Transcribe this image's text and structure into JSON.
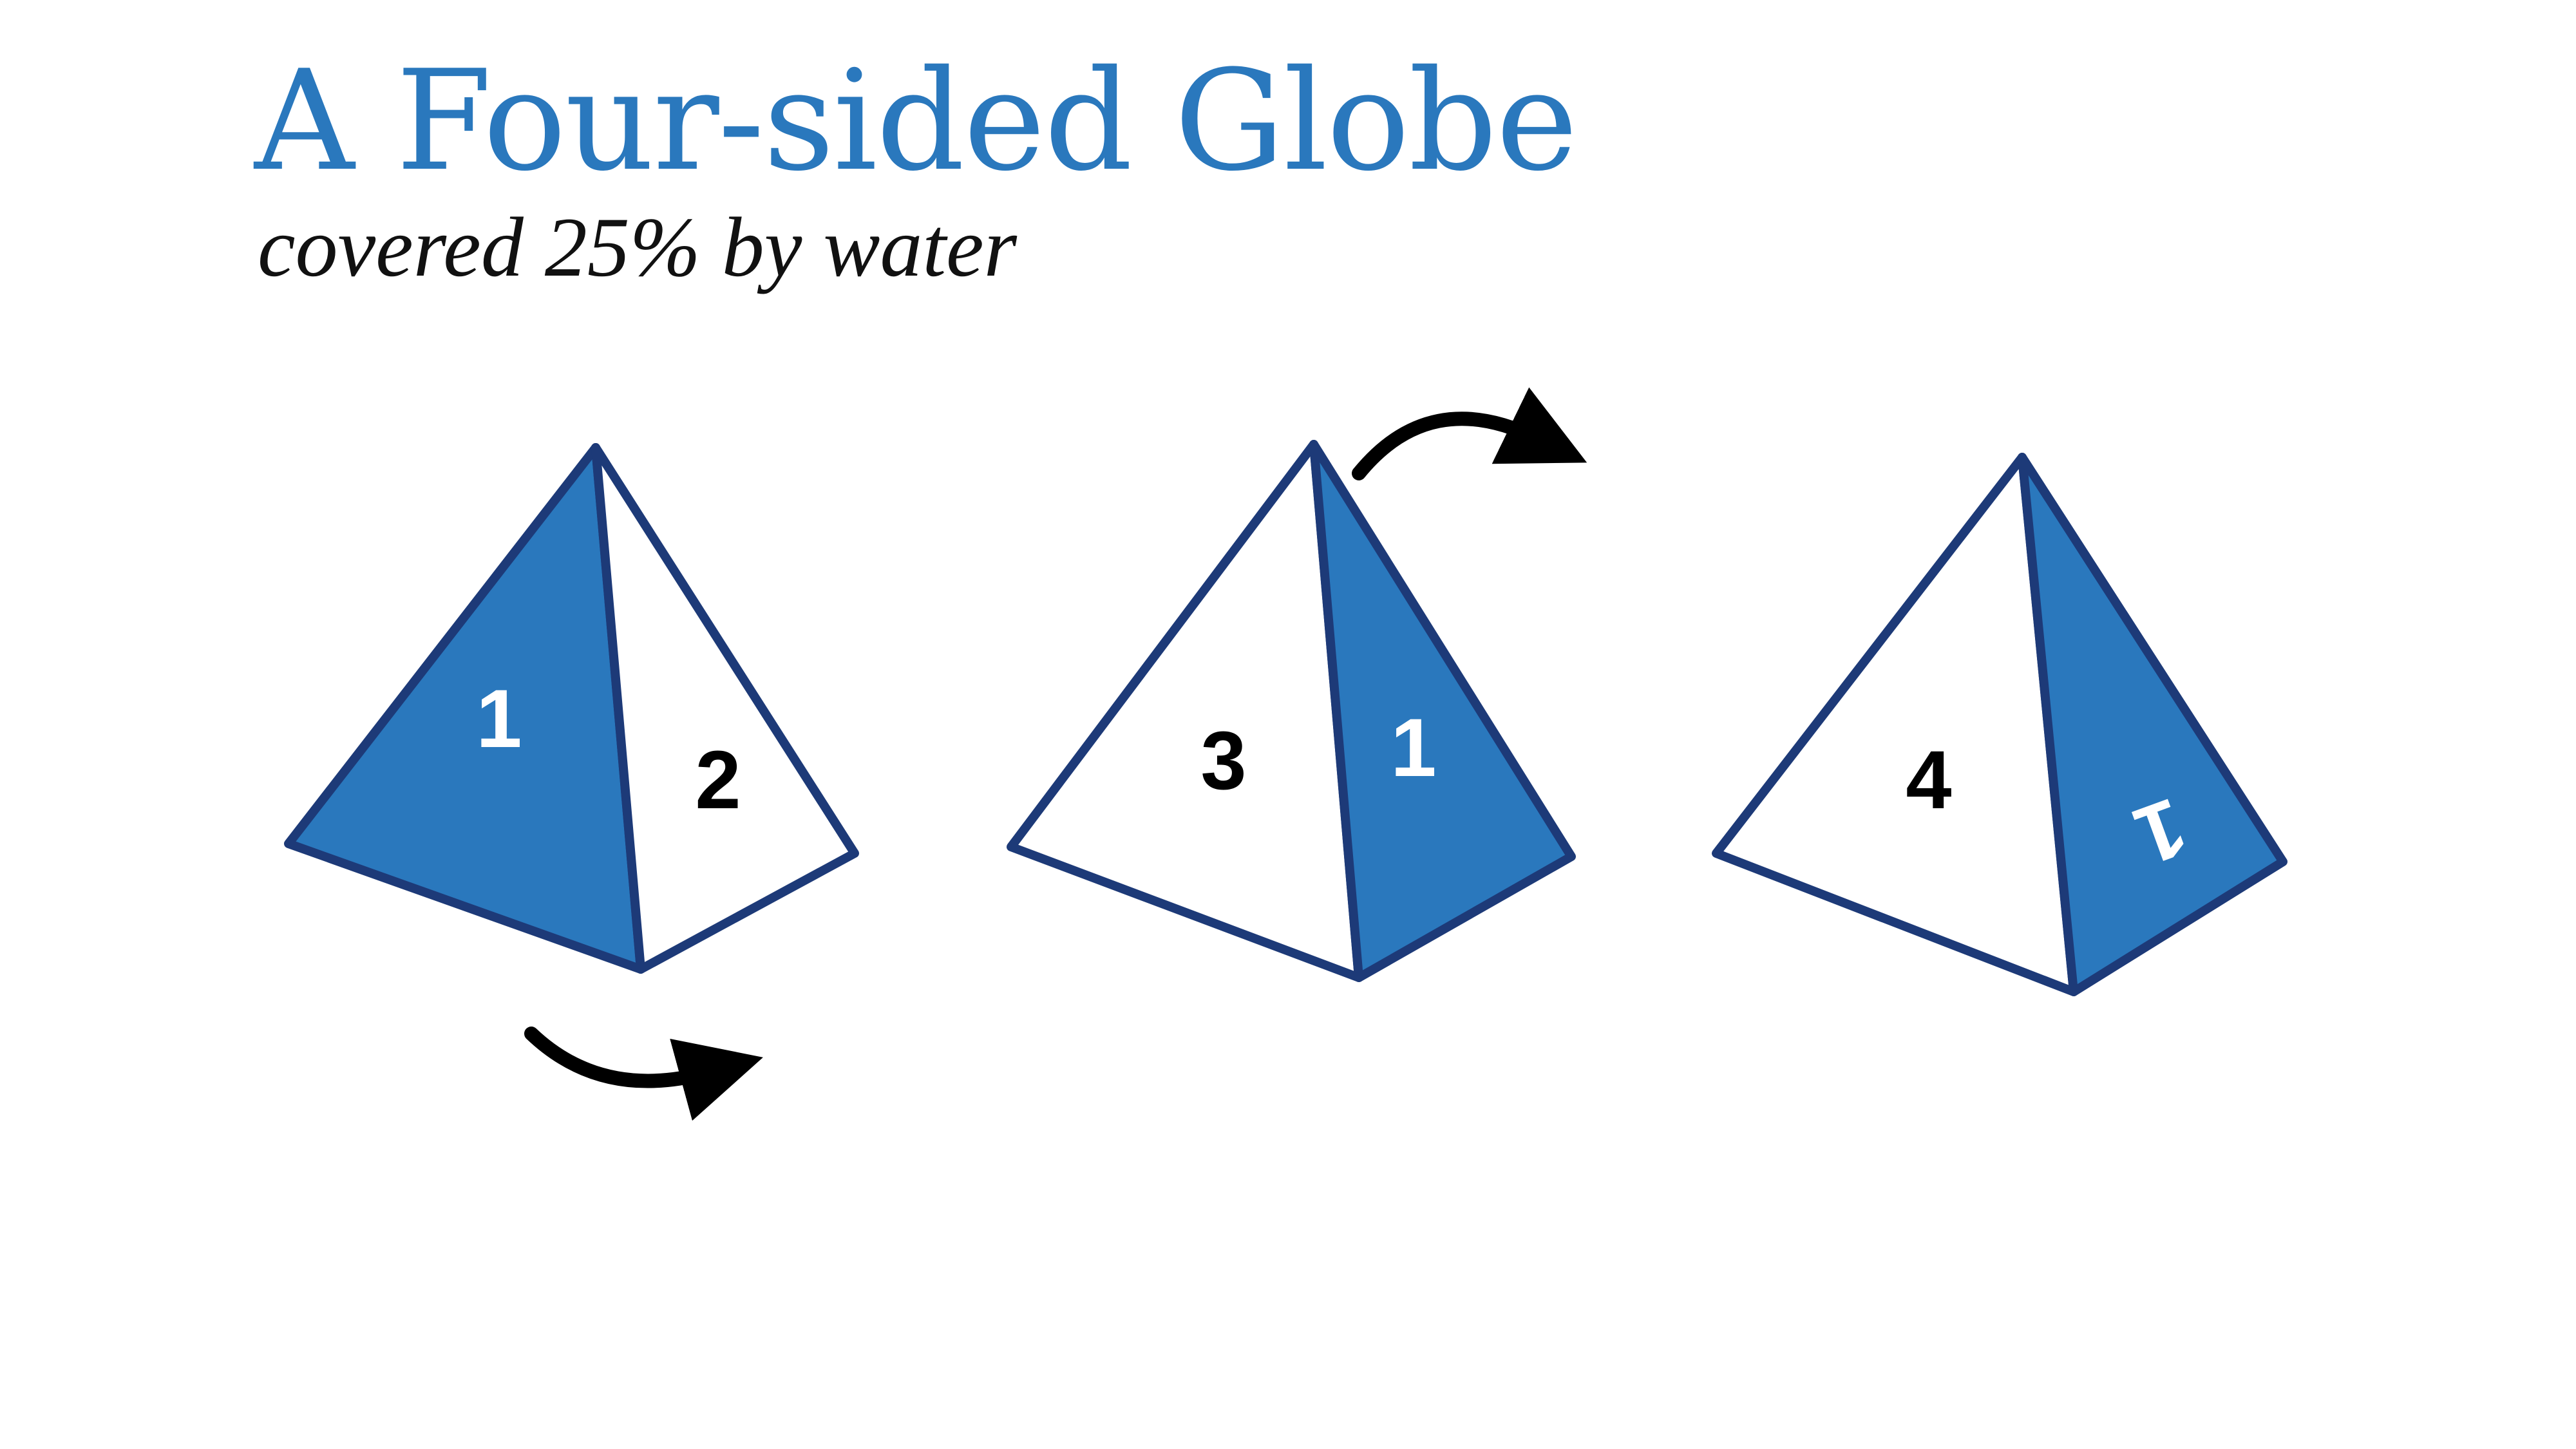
{
  "title": "A Four-sided Globe",
  "subtitle": "covered 25% by water",
  "colors": {
    "water": "#2a78bd",
    "land": "#ffffff",
    "outline": "#1d3a78",
    "title": "#2a78bd",
    "arrow": "#000000"
  },
  "pyramids": [
    {
      "faces": [
        {
          "label": "1",
          "fill": "water"
        },
        {
          "label": "2",
          "fill": "land"
        }
      ]
    },
    {
      "faces": [
        {
          "label": "3",
          "fill": "land"
        },
        {
          "label": "1",
          "fill": "water"
        }
      ]
    },
    {
      "faces": [
        {
          "label": "4",
          "fill": "land"
        },
        {
          "label": "1",
          "fill": "water",
          "rotated": true
        }
      ]
    }
  ],
  "arrows": [
    {
      "direction": "rotate-right",
      "position": "below pyramid 1"
    },
    {
      "direction": "rotate-right",
      "position": "above pyramid 2"
    }
  ]
}
